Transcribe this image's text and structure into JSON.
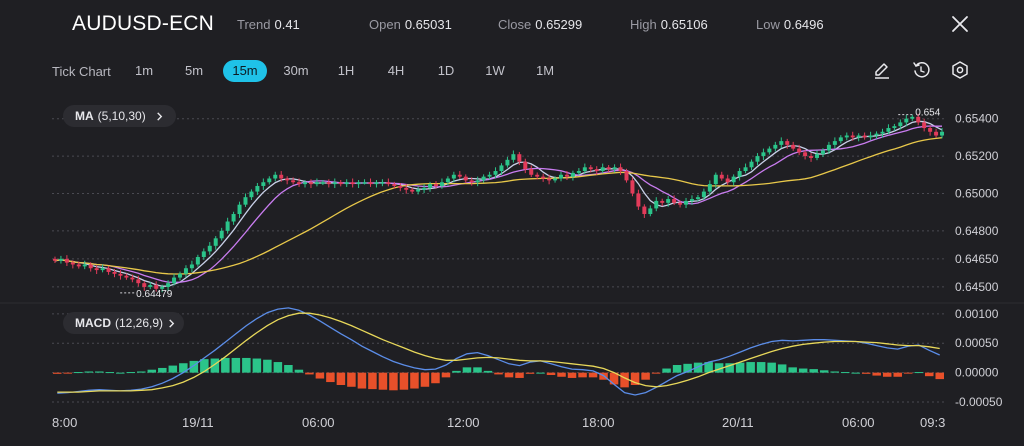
{
  "header": {
    "symbol": "AUDUSD-ECN",
    "trend_label": "Trend",
    "trend_value": "0.41",
    "open_label": "Open",
    "open_value": "0.65031",
    "close_label": "Close",
    "close_value": "0.65299",
    "high_label": "High",
    "high_value": "0.65106",
    "low_label": "Low",
    "low_value": "0.6496",
    "close_icon": "close-icon"
  },
  "timeframes": {
    "label": "Tick Chart",
    "items": [
      "1m",
      "5m",
      "15m",
      "30m",
      "1H",
      "4H",
      "1D",
      "1W",
      "1M"
    ],
    "active": "15m"
  },
  "tools": [
    "pencil-icon",
    "history-icon",
    "settings-icon"
  ],
  "colors": {
    "background": "#1f1f23",
    "up": "#2bc48a",
    "down": "#e23b5a",
    "ma5": "#c8d0e8",
    "ma10": "#c97cf0",
    "ma30": "#e8c84a",
    "macd_line": "#5b8de8",
    "signal_line": "#e8d85a",
    "hist_up": "#2bc48a",
    "hist_down": "#e8502a",
    "accent": "#1fc2e8"
  },
  "indicators": {
    "ma": {
      "name": "MA",
      "params": "(5,10,30)"
    },
    "macd": {
      "name": "MACD",
      "params": "(12,26,9)"
    }
  },
  "chart_data": [
    {
      "type": "candlestick",
      "symbol": "AUDUSD-ECN",
      "interval": "15m",
      "y_ticks": [
        "0.65400",
        "0.65200",
        "0.65000",
        "0.64800",
        "0.64650",
        "0.64500"
      ],
      "ylim": [
        0.6443,
        0.655
      ],
      "annotations": {
        "max_label": "0.654",
        "min_label": "0.64479"
      },
      "candles_close": [
        0.6464,
        0.6465,
        0.6463,
        0.6462,
        0.6461,
        0.6462,
        0.646,
        0.6459,
        0.646,
        0.6458,
        0.6457,
        0.6456,
        0.6455,
        0.6454,
        0.6452,
        0.645,
        0.6451,
        0.6449,
        0.645,
        0.6452,
        0.6455,
        0.6457,
        0.646,
        0.6462,
        0.6466,
        0.6469,
        0.6472,
        0.6476,
        0.648,
        0.6485,
        0.6489,
        0.6494,
        0.6498,
        0.6501,
        0.6504,
        0.6506,
        0.6508,
        0.651,
        0.6508,
        0.6507,
        0.6506,
        0.6505,
        0.6506,
        0.6505,
        0.6506,
        0.6506,
        0.6505,
        0.6506,
        0.6505,
        0.6506,
        0.6505,
        0.6506,
        0.6506,
        0.6505,
        0.6506,
        0.6506,
        0.6505,
        0.6504,
        0.6503,
        0.6502,
        0.6501,
        0.6502,
        0.6503,
        0.6505,
        0.6504,
        0.6506,
        0.6508,
        0.651,
        0.6509,
        0.6507,
        0.6506,
        0.6507,
        0.6509,
        0.651,
        0.6512,
        0.6515,
        0.6518,
        0.6521,
        0.6517,
        0.6513,
        0.651,
        0.6509,
        0.6508,
        0.6507,
        0.6508,
        0.651,
        0.6509,
        0.6511,
        0.6512,
        0.6514,
        0.6513,
        0.6512,
        0.6514,
        0.6513,
        0.6514,
        0.6512,
        0.6507,
        0.65,
        0.6493,
        0.6489,
        0.6492,
        0.6496,
        0.6495,
        0.6497,
        0.6495,
        0.6494,
        0.6496,
        0.6497,
        0.6498,
        0.6501,
        0.6505,
        0.651,
        0.6508,
        0.6506,
        0.6509,
        0.6512,
        0.6514,
        0.6517,
        0.652,
        0.6522,
        0.6524,
        0.6526,
        0.6528,
        0.6526,
        0.6524,
        0.6522,
        0.652,
        0.6519,
        0.6521,
        0.6523,
        0.6526,
        0.6528,
        0.653,
        0.6531,
        0.653,
        0.6531,
        0.653,
        0.6531,
        0.6532,
        0.6533,
        0.6535,
        0.6536,
        0.6538,
        0.654,
        0.6541,
        0.6538,
        0.6535,
        0.6533,
        0.6531,
        0.6533
      ]
    },
    {
      "type": "line",
      "name": "MACD",
      "y_ticks": [
        "0.00100",
        "0.00050",
        "0.00000",
        "-0.00050"
      ],
      "ylim": [
        -0.00055,
        0.00115
      ],
      "macd": [
        -0.00035,
        -0.00034,
        -0.00032,
        -0.0003,
        -0.00029,
        -0.0003,
        -0.00031,
        -0.0003,
        -0.00028,
        -0.00024,
        -0.00018,
        -0.0001,
        0.0,
        0.00012,
        0.00025,
        0.00038,
        0.00052,
        0.00066,
        0.0008,
        0.00092,
        0.00102,
        0.00108,
        0.0011,
        0.00106,
        0.00098,
        0.00088,
        0.00077,
        0.00066,
        0.00056,
        0.00045,
        0.00036,
        0.00027,
        0.00019,
        0.00013,
        8e-05,
        5e-05,
        6e-05,
        0.00013,
        0.00024,
        0.00032,
        0.00034,
        0.00029,
        0.00022,
        0.00015,
        0.00012,
        0.00018,
        0.0002,
        0.00015,
        0.0001,
        6e-05,
        5e-05,
        3e-05,
        -5e-05,
        -0.0002,
        -0.00034,
        -0.00038,
        -0.00034,
        -0.00025,
        -0.00015,
        -5e-05,
        2e-05,
        0.0001,
        0.00018,
        0.00022,
        0.00028,
        0.00035,
        0.00042,
        0.00048,
        0.00053,
        0.00055,
        0.00054,
        0.00055,
        0.00056,
        0.00056,
        0.00055,
        0.00054,
        0.00053,
        0.0005,
        0.00046,
        0.00042,
        0.0004,
        0.00045,
        0.00047,
        0.00038,
        0.0003
      ],
      "signal": [
        -0.00033,
        -0.00033,
        -0.00033,
        -0.00032,
        -0.00031,
        -0.00031,
        -0.00031,
        -0.00031,
        -0.0003,
        -0.00029,
        -0.00026,
        -0.00022,
        -0.00016,
        -8e-05,
        2e-05,
        0.00014,
        0.00027,
        0.00041,
        0.00055,
        0.00068,
        0.0008,
        0.0009,
        0.00097,
        0.00101,
        0.00101,
        0.00098,
        0.00093,
        0.00087,
        0.0008,
        0.00072,
        0.00064,
        0.00056,
        0.00049,
        0.00042,
        0.00035,
        0.00029,
        0.00024,
        0.00021,
        0.00021,
        0.00023,
        0.00025,
        0.00026,
        0.00025,
        0.00023,
        0.00021,
        0.0002,
        0.0002,
        0.00019,
        0.00017,
        0.00015,
        0.00013,
        0.00011,
        7e-05,
        0.0,
        -9e-05,
        -0.00017,
        -0.00022,
        -0.00024,
        -0.00022,
        -0.00018,
        -0.00013,
        -7e-05,
        0.0,
        6e-05,
        0.00012,
        0.00018,
        0.00024,
        0.0003,
        0.00036,
        0.00041,
        0.00045,
        0.00048,
        0.0005,
        0.00052,
        0.00053,
        0.00053,
        0.00053,
        0.00052,
        0.00051,
        0.00049,
        0.00047,
        0.00046,
        0.00046,
        0.00044,
        0.00041
      ]
    }
  ],
  "time_axis": [
    "8:00",
    "19/11",
    "06:00",
    "12:00",
    "18:00",
    "20/11",
    "06:00",
    "09:3"
  ]
}
